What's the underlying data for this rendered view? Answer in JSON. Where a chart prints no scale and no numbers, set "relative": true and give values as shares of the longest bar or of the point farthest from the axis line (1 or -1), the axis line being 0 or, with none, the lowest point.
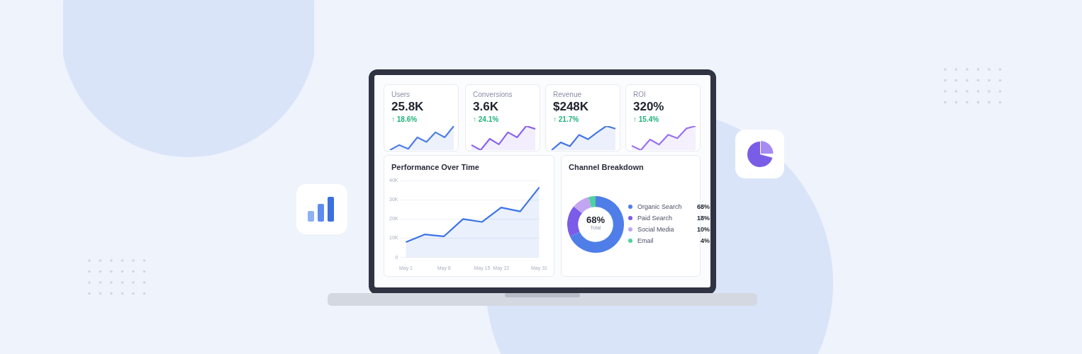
{
  "chart_data": [
    {
      "type": "area",
      "title": "Users",
      "annotations": [
        "25.8K",
        "↑ 18.6%"
      ],
      "relative": true,
      "categories": [
        null,
        null,
        null,
        null,
        null,
        null,
        null,
        null
      ],
      "series": [
        {
          "color": "#4f7ee8",
          "values": [
            0,
            0.21,
            0.05,
            0.53,
            0.34,
            0.74,
            0.53,
            1
          ]
        }
      ]
    },
    {
      "type": "area",
      "title": "Conversions",
      "annotations": [
        "3.6K",
        "↑ 24.1%"
      ],
      "relative": true,
      "categories": [
        null,
        null,
        null,
        null,
        null,
        null,
        null,
        null
      ],
      "series": [
        {
          "color": "#8b63ee",
          "values": [
            0.21,
            0,
            0.47,
            0.24,
            0.74,
            0.53,
            1,
            0.88
          ]
        }
      ]
    },
    {
      "type": "area",
      "title": "Revenue",
      "annotations": [
        "$248K",
        "↑ 21.7%"
      ],
      "relative": true,
      "categories": [
        null,
        null,
        null,
        null,
        null,
        null,
        null,
        null
      ],
      "series": [
        {
          "color": "#4677e4",
          "values": [
            0,
            0.32,
            0.16,
            0.63,
            0.45,
            0.74,
            1,
            0.89
          ]
        }
      ]
    },
    {
      "type": "area",
      "title": "ROI",
      "annotations": [
        "320%",
        "↑ 15.4%"
      ],
      "relative": true,
      "categories": [
        null,
        null,
        null,
        null,
        null,
        null,
        null,
        null
      ],
      "series": [
        {
          "color": "#9a72f2",
          "values": [
            0.18,
            0,
            0.44,
            0.23,
            0.64,
            0.49,
            0.9,
            1
          ]
        }
      ]
    },
    {
      "type": "area",
      "title": "Performance Over Time",
      "categories": [
        "May 1",
        null,
        "May 8",
        null,
        "May 15",
        "May 22",
        null,
        "May 31"
      ],
      "series": [
        {
          "color": "#3d74e6",
          "values": [
            8000,
            12000,
            11000,
            20000,
            18500,
            26000,
            24000,
            36500
          ]
        }
      ],
      "ylim": [
        0,
        40000
      ],
      "yticks": [
        0,
        {
          "value": 10000,
          "label": "10K"
        },
        {
          "value": 20000,
          "label": "20K"
        },
        {
          "value": 30000,
          "label": "30K"
        },
        {
          "value": 40000,
          "label": "40K"
        }
      ],
      "grid": "y"
    },
    {
      "type": "donut",
      "title": "Channel Breakdown",
      "categories": [
        "Organic Search",
        "Paid Search",
        "Social Media",
        "Email"
      ],
      "values": [
        68,
        18,
        10,
        4
      ],
      "colors": [
        "#4f7ee8",
        "#7b5ce8",
        "#c3a6f2",
        "#4fd1a0"
      ],
      "value_labels": [
        "68%",
        "18%",
        "10%",
        "4%"
      ],
      "annotations": [
        "68%",
        "Total"
      ],
      "legend": "right"
    }
  ]
}
